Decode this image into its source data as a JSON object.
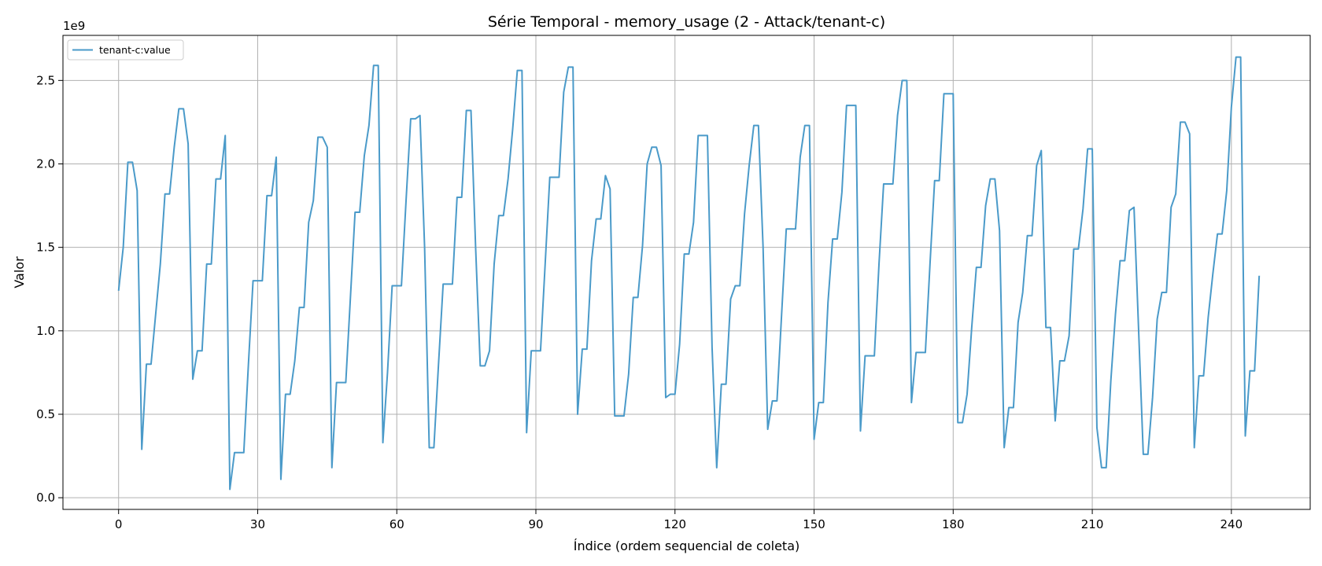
{
  "chart_data": {
    "type": "line",
    "title": "Série Temporal - memory_usage (2 - Attack/tenant-c)",
    "xlabel": "Índice (ordem sequencial de coleta)",
    "ylabel": "Valor",
    "y_offset_label": "1e9",
    "y_multiplier": 1000000000,
    "xlim": [
      -12,
      257
    ],
    "ylim": [
      -0.07,
      2.77
    ],
    "x_ticks": [
      0,
      30,
      60,
      90,
      120,
      150,
      180,
      210,
      240
    ],
    "y_ticks": [
      0.0,
      0.5,
      1.0,
      1.5,
      2.0,
      2.5
    ],
    "y_tick_labels": [
      "0.0",
      "0.5",
      "1.0",
      "1.5",
      "2.0",
      "2.5"
    ],
    "grid": true,
    "legend_position": "upper-left",
    "color": "#4a9ac9",
    "series": [
      {
        "name": "tenant-c:value",
        "values": [
          1.24,
          1.5,
          2.01,
          2.01,
          1.84,
          0.29,
          0.8,
          0.8,
          1.1,
          1.4,
          1.82,
          1.82,
          2.1,
          2.33,
          2.33,
          2.12,
          0.71,
          0.88,
          0.88,
          1.4,
          1.4,
          1.91,
          1.91,
          2.17,
          0.05,
          0.27,
          0.27,
          0.27,
          0.8,
          1.3,
          1.3,
          1.3,
          1.81,
          1.81,
          2.04,
          0.11,
          0.62,
          0.62,
          0.82,
          1.14,
          1.14,
          1.65,
          1.78,
          2.16,
          2.16,
          2.1,
          0.18,
          0.69,
          0.69,
          0.69,
          1.2,
          1.71,
          1.71,
          2.05,
          2.23,
          2.59,
          2.59,
          0.33,
          0.75,
          1.27,
          1.27,
          1.27,
          1.78,
          2.27,
          2.27,
          2.29,
          1.5,
          0.3,
          0.3,
          0.8,
          1.28,
          1.28,
          1.28,
          1.8,
          1.8,
          2.32,
          2.32,
          1.5,
          0.79,
          0.79,
          0.88,
          1.4,
          1.69,
          1.69,
          1.91,
          2.21,
          2.56,
          2.56,
          0.39,
          0.88,
          0.88,
          0.88,
          1.4,
          1.92,
          1.92,
          1.92,
          2.43,
          2.58,
          2.58,
          0.5,
          0.89,
          0.89,
          1.42,
          1.67,
          1.67,
          1.93,
          1.85,
          0.49,
          0.49,
          0.49,
          0.74,
          1.2,
          1.2,
          1.51,
          2.0,
          2.1,
          2.1,
          1.99,
          0.6,
          0.62,
          0.62,
          0.92,
          1.46,
          1.46,
          1.65,
          2.17,
          2.17,
          2.17,
          0.9,
          0.18,
          0.68,
          0.68,
          1.19,
          1.27,
          1.27,
          1.7,
          1.99,
          2.23,
          2.23,
          1.5,
          0.41,
          0.58,
          0.58,
          1.1,
          1.61,
          1.61,
          1.61,
          2.04,
          2.23,
          2.23,
          0.35,
          0.57,
          0.57,
          1.17,
          1.55,
          1.55,
          1.83,
          2.35,
          2.35,
          2.35,
          0.4,
          0.85,
          0.85,
          0.85,
          1.4,
          1.88,
          1.88,
          1.88,
          2.29,
          2.5,
          2.5,
          0.57,
          0.87,
          0.87,
          0.87,
          1.4,
          1.9,
          1.9,
          2.42,
          2.42,
          2.42,
          0.45,
          0.45,
          0.62,
          1.02,
          1.38,
          1.38,
          1.75,
          1.91,
          1.91,
          1.6,
          0.3,
          0.54,
          0.54,
          1.05,
          1.23,
          1.57,
          1.57,
          1.99,
          2.08,
          1.02,
          1.02,
          0.46,
          0.82,
          0.82,
          0.97,
          1.49,
          1.49,
          1.73,
          2.09,
          2.09,
          0.42,
          0.18,
          0.18,
          0.7,
          1.1,
          1.42,
          1.42,
          1.72,
          1.74,
          1.0,
          0.26,
          0.26,
          0.6,
          1.07,
          1.23,
          1.23,
          1.74,
          1.82,
          2.25,
          2.25,
          2.18,
          0.3,
          0.73,
          0.73,
          1.08,
          1.34,
          1.58,
          1.58,
          1.84,
          2.34,
          2.64,
          2.64,
          0.37,
          0.76,
          0.76,
          1.33
        ]
      }
    ]
  }
}
